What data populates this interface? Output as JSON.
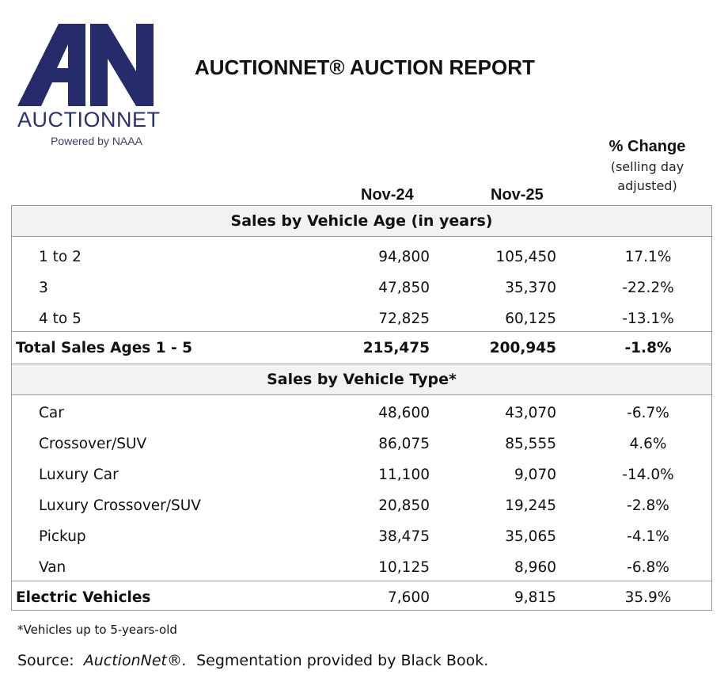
{
  "logo": {
    "glyph": "AN",
    "wordmark": "AUCTIONNET",
    "tagline": "Powered by NAAA",
    "color": "#252b6b"
  },
  "title": "AUCTIONNET® AUCTION REPORT",
  "columns": {
    "col1": "Nov-24",
    "col2": "Nov-25",
    "col3_title": "% Change",
    "col3_note_line1": "(selling day",
    "col3_note_line2": "adjusted)"
  },
  "sections": {
    "age": {
      "title": "Sales by Vehicle Age (in years)",
      "rows": [
        {
          "label": "1 to 2",
          "nov24": "94,800",
          "nov25": "105,450",
          "change": "17.1%"
        },
        {
          "label": "3",
          "nov24": "47,850",
          "nov25": "35,370",
          "change": "-22.2%"
        },
        {
          "label": "4 to 5",
          "nov24": "72,825",
          "nov25": "60,125",
          "change": "-13.1%"
        }
      ],
      "total": {
        "label": "Total Sales Ages 1 - 5",
        "nov24": "215,475",
        "nov25": "200,945",
        "change": "-1.8%"
      }
    },
    "type": {
      "title": "Sales by Vehicle Type*",
      "rows": [
        {
          "label": "Car",
          "nov24": "48,600",
          "nov25": "43,070",
          "change": "-6.7%"
        },
        {
          "label": "Crossover/SUV",
          "nov24": "86,075",
          "nov25": "85,555",
          "change": "4.6%"
        },
        {
          "label": "Luxury Car",
          "nov24": "11,100",
          "nov25": "9,070",
          "change": "-14.0%"
        },
        {
          "label": "Luxury Crossover/SUV",
          "nov24": "20,850",
          "nov25": "19,245",
          "change": "-2.8%"
        },
        {
          "label": "Pickup",
          "nov24": "38,475",
          "nov25": "35,065",
          "change": "-4.1%"
        },
        {
          "label": "Van",
          "nov24": "10,125",
          "nov25": "8,960",
          "change": "-6.8%"
        }
      ]
    },
    "ev": {
      "label": "Electric Vehicles",
      "nov24": "7,600",
      "nov25": "9,815",
      "change": "35.9%"
    }
  },
  "footnote": "*Vehicles up to 5-years-old",
  "source": {
    "prefix": "Source:  ",
    "name": "AuctionNet®.",
    "suffix": "  Segmentation provided by Black Book."
  }
}
